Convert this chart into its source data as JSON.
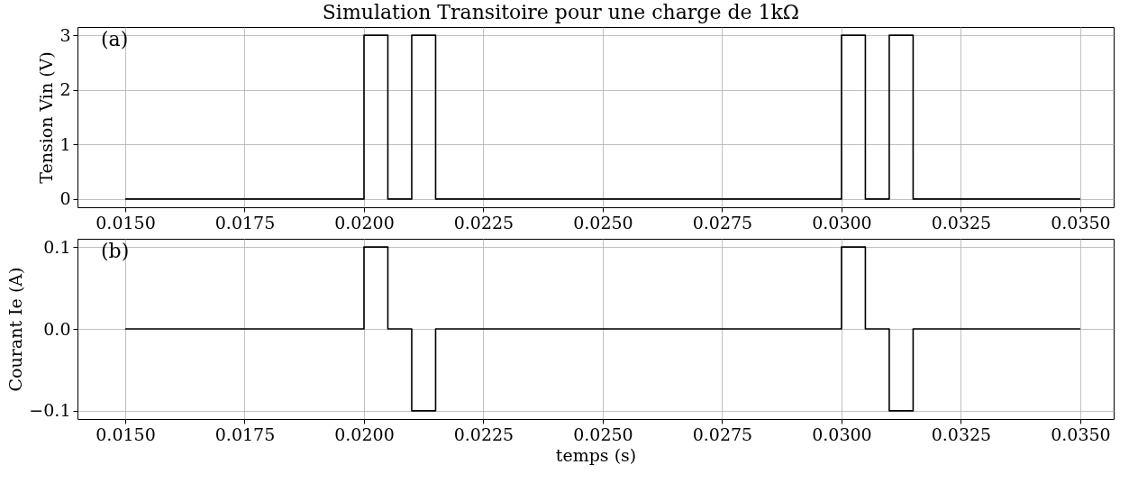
{
  "chart_data": [
    {
      "type": "line",
      "title": "Simulation Transitoire pour une charge de 1kΩ",
      "ylabel": "Tension Vin (V)",
      "annotations": [
        "(a)"
      ],
      "grid": true,
      "x": [
        0.015,
        0.02,
        0.02,
        0.0205,
        0.0205,
        0.021,
        0.021,
        0.0215,
        0.0215,
        0.03,
        0.03,
        0.0305,
        0.0305,
        0.031,
        0.031,
        0.0315,
        0.0315,
        0.035
      ],
      "series": [
        {
          "color": "#000000",
          "values": [
            0,
            0,
            3,
            3,
            0,
            0,
            3,
            3,
            0,
            0,
            3,
            3,
            0,
            0,
            3,
            3,
            0,
            0
          ]
        }
      ],
      "xlim": [
        0.014,
        0.0357
      ],
      "ylim": [
        -0.15,
        3.15
      ],
      "yticks": [
        0,
        1,
        2,
        3
      ],
      "xticks": [
        {
          "value": 0.015,
          "label": "0.0150"
        },
        {
          "value": 0.0175,
          "label": "0.0175"
        },
        {
          "value": 0.02,
          "label": "0.0200"
        },
        {
          "value": 0.0225,
          "label": "0.0225"
        },
        {
          "value": 0.025,
          "label": "0.0250"
        },
        {
          "value": 0.0275,
          "label": "0.0275"
        },
        {
          "value": 0.03,
          "label": "0.0300"
        },
        {
          "value": 0.0325,
          "label": "0.0325"
        },
        {
          "value": 0.035,
          "label": "0.0350"
        }
      ]
    },
    {
      "type": "line",
      "xlabel": "temps (s)",
      "ylabel": "Courant Ie (A)",
      "annotations": [
        "(b)"
      ],
      "grid": true,
      "x": [
        0.015,
        0.02,
        0.02,
        0.0205,
        0.0205,
        0.021,
        0.021,
        0.0215,
        0.0215,
        0.03,
        0.03,
        0.0305,
        0.0305,
        0.031,
        0.031,
        0.0315,
        0.0315,
        0.035
      ],
      "series": [
        {
          "color": "#000000",
          "values": [
            0,
            0,
            0.1,
            0.1,
            0,
            0,
            -0.1,
            -0.1,
            0,
            0,
            0.1,
            0.1,
            0,
            0,
            -0.1,
            -0.1,
            0,
            0
          ]
        }
      ],
      "xlim": [
        0.014,
        0.0357
      ],
      "ylim": [
        -0.11,
        0.11
      ],
      "yticks": [
        {
          "value": -0.1,
          "label": "−0.1"
        },
        {
          "value": 0,
          "label": "0.0"
        },
        {
          "value": 0.1,
          "label": "0.1"
        }
      ],
      "xticks": [
        {
          "value": 0.015,
          "label": "0.0150"
        },
        {
          "value": 0.0175,
          "label": "0.0175"
        },
        {
          "value": 0.02,
          "label": "0.0200"
        },
        {
          "value": 0.0225,
          "label": "0.0225"
        },
        {
          "value": 0.025,
          "label": "0.0250"
        },
        {
          "value": 0.0275,
          "label": "0.0275"
        },
        {
          "value": 0.03,
          "label": "0.0300"
        },
        {
          "value": 0.0325,
          "label": "0.0325"
        },
        {
          "value": 0.035,
          "label": "0.0350"
        }
      ]
    }
  ]
}
